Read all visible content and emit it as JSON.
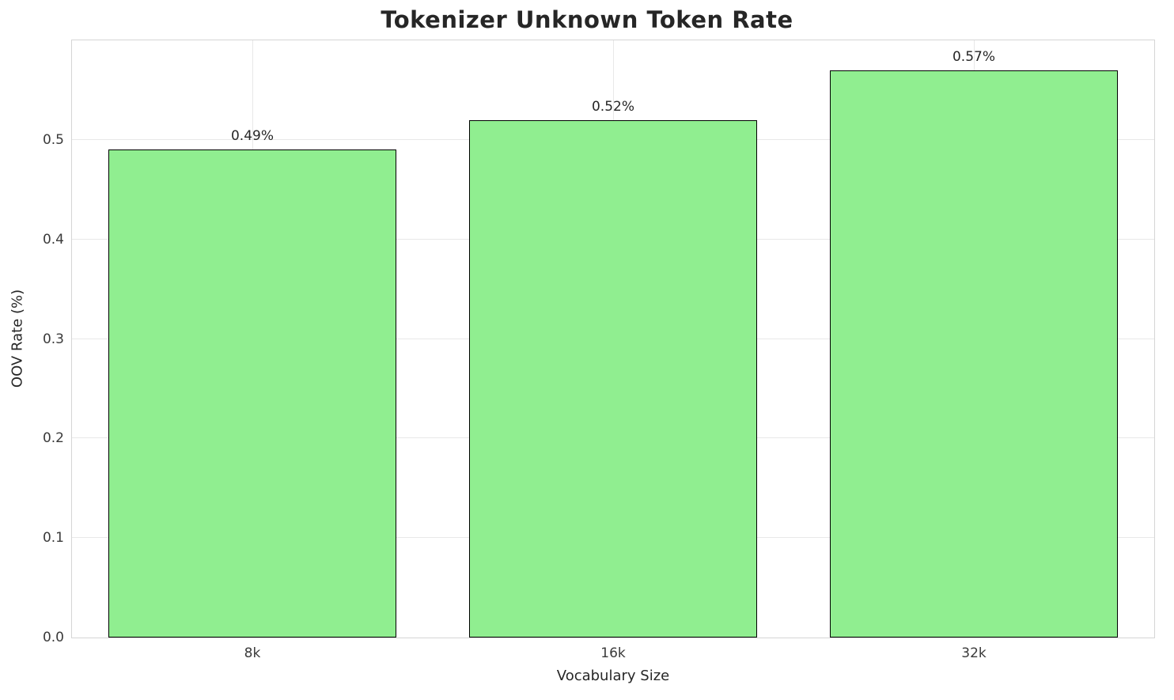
{
  "chart_data": {
    "type": "bar",
    "title": "Tokenizer Unknown Token Rate",
    "xlabel": "Vocabulary Size",
    "ylabel": "OOV Rate (%)",
    "categories": [
      "8k",
      "16k",
      "32k"
    ],
    "values": [
      0.49,
      0.52,
      0.57
    ],
    "value_labels": [
      "0.49%",
      "0.52%",
      "0.57%"
    ],
    "ylim": [
      0,
      0.6
    ],
    "yticks": [
      0.0,
      0.1,
      0.2,
      0.3,
      0.4,
      0.5
    ],
    "ytick_labels": [
      "0.0",
      "0.1",
      "0.2",
      "0.3",
      "0.4",
      "0.5"
    ],
    "bar_width_fraction": 0.8,
    "bar_color": "#90EE90",
    "bar_edge_color": "#000000",
    "grid": true,
    "legend": "none"
  }
}
